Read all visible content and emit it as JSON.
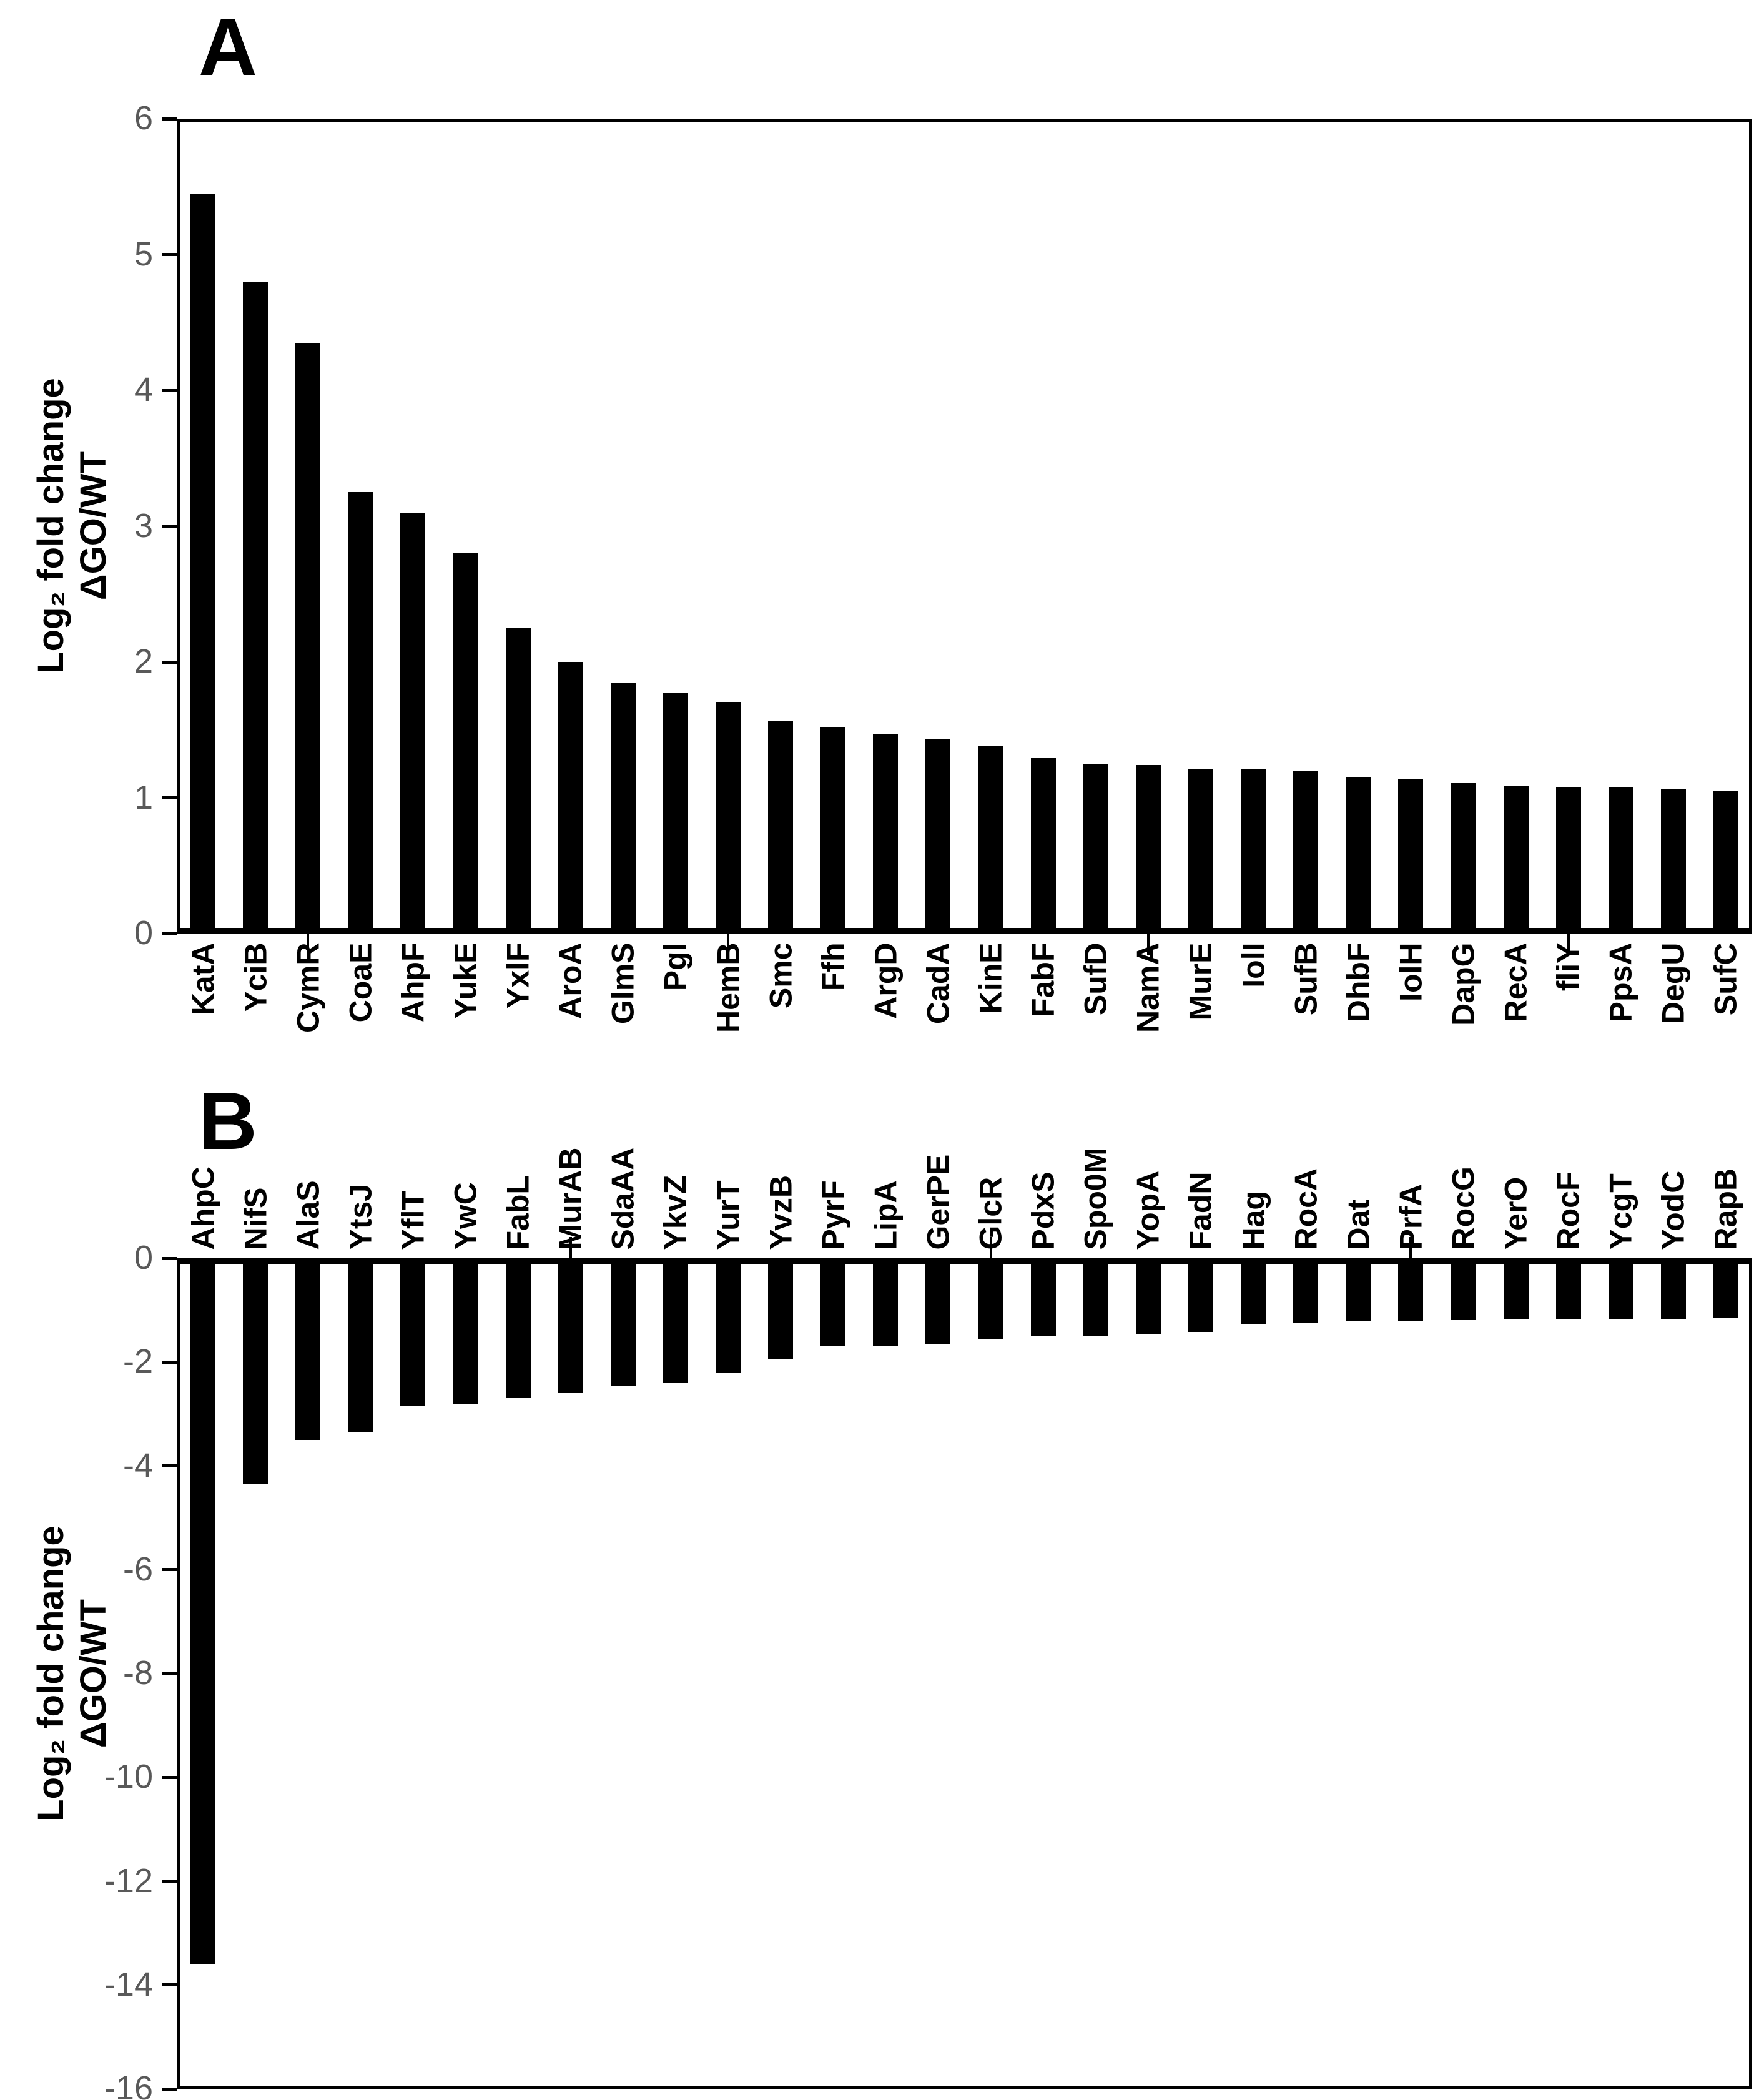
{
  "figure": {
    "panel_a_label": "A",
    "panel_b_label": "B",
    "y_axis_title_line1": "Log₂ fold change",
    "y_axis_title_line2": "ΔGO/WT"
  },
  "colors": {
    "bar": "#000000",
    "axis": "#000000",
    "tick_label": "#595959",
    "background": "#ffffff"
  },
  "chart_data": [
    {
      "id": "A",
      "type": "bar",
      "panel_label": "A",
      "title": "",
      "xlabel": "",
      "ylabel": "Log₂ fold change ΔGO/WT",
      "ylabel_lines": [
        "Log₂ fold change",
        "ΔGO/WT"
      ],
      "ylim": [
        0,
        6
      ],
      "yticks": [
        6,
        5,
        4,
        3,
        2,
        1,
        0
      ],
      "grid": false,
      "legend_position": "none",
      "category_label_position": "below-axis-rotated-90",
      "categories": [
        "KatA",
        "YciB",
        "CymR",
        "CoaE",
        "AhpF",
        "YukE",
        "YxlF",
        "AroA",
        "GlmS",
        "Pgl",
        "HemB",
        "Smc",
        "Ffh",
        "ArgD",
        "CadA",
        "KinE",
        "FabF",
        "SufD",
        "NamA",
        "MurE",
        "IolI",
        "SufB",
        "DhbF",
        "IolH",
        "DapG",
        "RecA",
        "fliY",
        "PpsA",
        "DegU",
        "SufC"
      ],
      "values": [
        5.45,
        4.8,
        4.35,
        3.25,
        3.1,
        2.8,
        2.25,
        2.0,
        1.85,
        1.77,
        1.7,
        1.57,
        1.52,
        1.47,
        1.43,
        1.38,
        1.29,
        1.25,
        1.24,
        1.21,
        1.21,
        1.2,
        1.15,
        1.14,
        1.11,
        1.09,
        1.08,
        1.08,
        1.06,
        1.05
      ]
    },
    {
      "id": "B",
      "type": "bar",
      "panel_label": "B",
      "title": "",
      "xlabel": "",
      "ylabel": "Log₂ fold change ΔGO/WT",
      "ylabel_lines": [
        "Log₂ fold change",
        "ΔGO/WT"
      ],
      "ylim": [
        -16,
        0
      ],
      "yticks": [
        0,
        -2,
        -4,
        -6,
        -8,
        -10,
        -12,
        -14,
        -16
      ],
      "grid": false,
      "legend_position": "none",
      "category_label_position": "above-axis-rotated-90",
      "categories": [
        "AhpC",
        "NifS",
        "AlaS",
        "YtsJ",
        "YflT",
        "YwC",
        "FabL",
        "MurAB",
        "SdaAA",
        "YkvZ",
        "YurT",
        "YvzB",
        "PyrF",
        "LipA",
        "GerPE",
        "GlcR",
        "PdxS",
        "Spo0M",
        "YopA",
        "FadN",
        "Hag",
        "RocA",
        "Dat",
        "PrfA",
        "RocG",
        "YerO",
        "RocF",
        "YcgT",
        "YodC",
        "RapB"
      ],
      "values": [
        -13.6,
        -4.35,
        -3.5,
        -3.35,
        -2.85,
        -2.8,
        -2.7,
        -2.6,
        -2.45,
        -2.4,
        -2.2,
        -1.95,
        -1.7,
        -1.7,
        -1.65,
        -1.55,
        -1.5,
        -1.5,
        -1.45,
        -1.42,
        -1.28,
        -1.25,
        -1.22,
        -1.2,
        -1.19,
        -1.18,
        -1.18,
        -1.17,
        -1.17,
        -1.16
      ]
    }
  ]
}
